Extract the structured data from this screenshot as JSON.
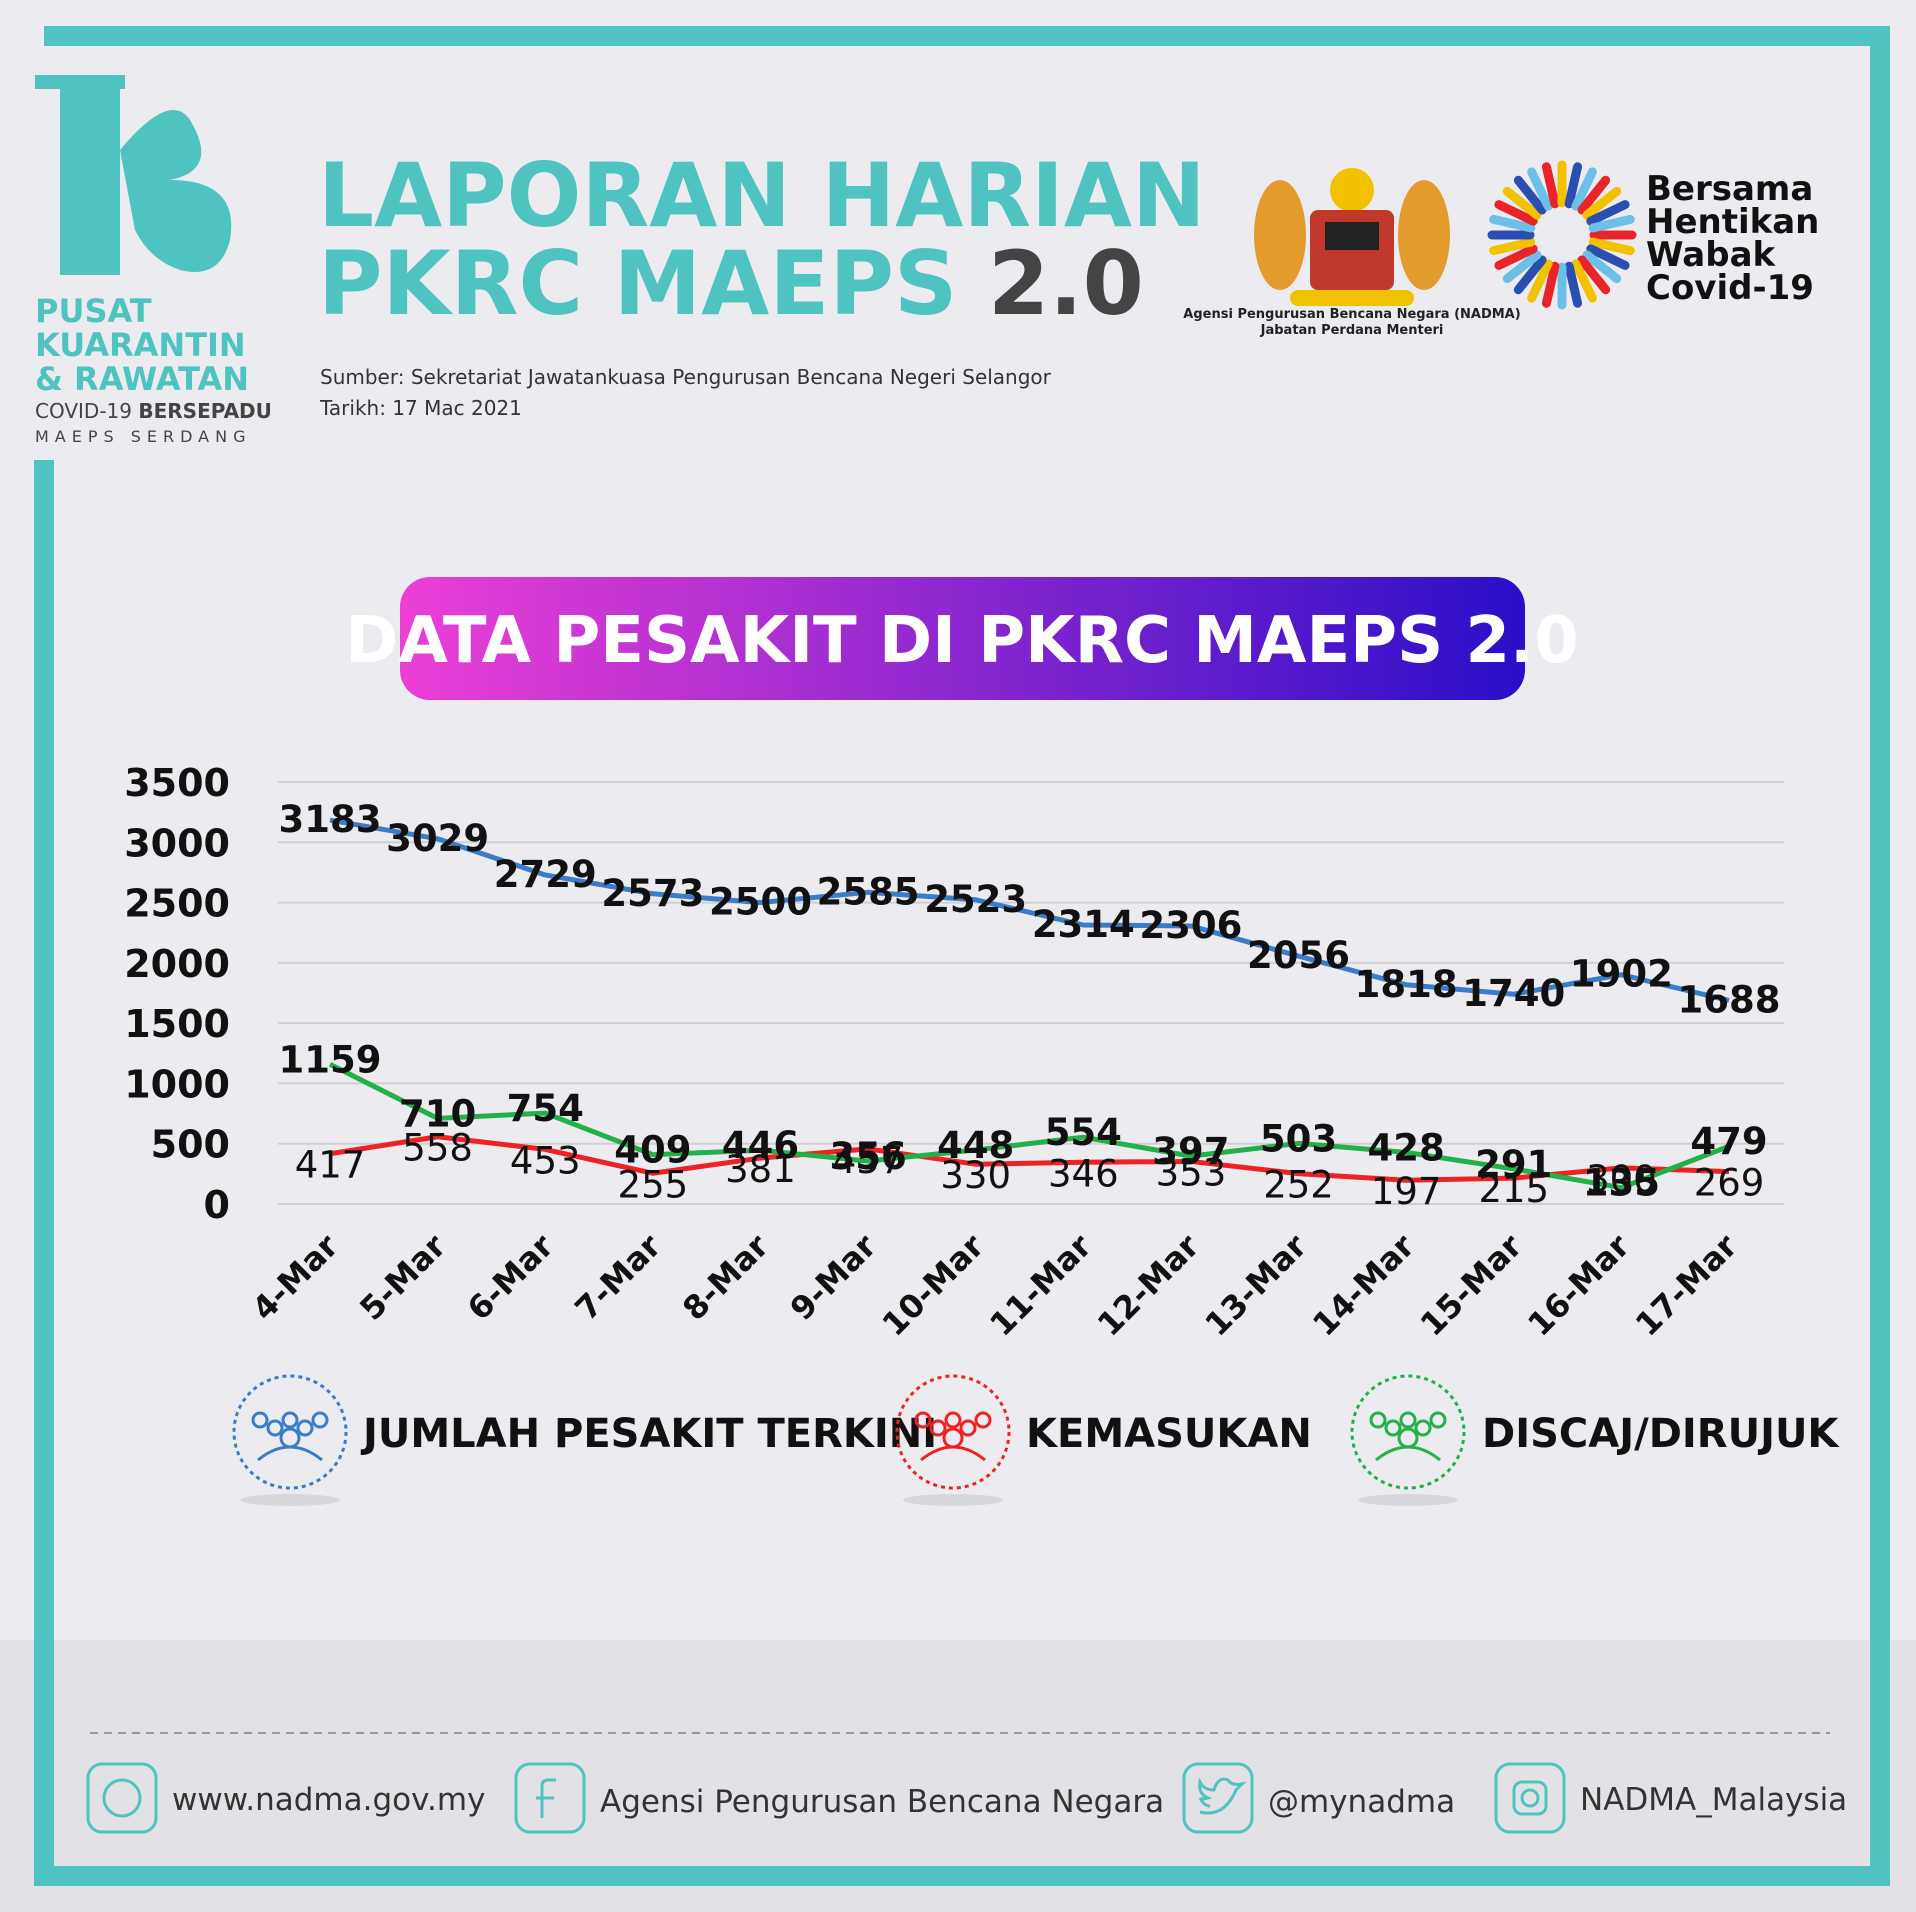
{
  "logo": {
    "line1": "PUSAT",
    "line2": "KUARANTIN",
    "line3": "& RAWATAN",
    "line4a": "COVID-19",
    "line4b": "BERSEPADU",
    "line5": "MAEPS SERDANG"
  },
  "header": {
    "title_line1": "LAPORAN HARIAN",
    "title_line2": "PKRC MAEPS",
    "title_version": "2.0",
    "source": "Sumber: Sekretariat Jawatankuasa Pengurusan Bencana Negeri Selangor",
    "date": "Tarikh: 17 Mac 2021",
    "agency": "Agensi Pengurusan Bencana Negara (NADMA)",
    "department": "Jabatan Perdana Menteri",
    "slogan": [
      "Bersama",
      "Hentikan",
      "Wabak",
      "Covid-19"
    ]
  },
  "chart_data": {
    "type": "line",
    "title": "DATA PESAKIT DI PKRC MAEPS 2.0",
    "categories": [
      "4-Mar",
      "5-Mar",
      "6-Mar",
      "7-Mar",
      "8-Mar",
      "9-Mar",
      "10-Mar",
      "11-Mar",
      "12-Mar",
      "13-Mar",
      "14-Mar",
      "15-Mar",
      "16-Mar",
      "17-Mar"
    ],
    "series": [
      {
        "name": "JUMLAH PESAKIT TERKINI",
        "color": "#3a7cc9",
        "values": [
          3183,
          3029,
          2729,
          2573,
          2500,
          2585,
          2523,
          2314,
          2306,
          2056,
          1818,
          1740,
          1902,
          1688
        ]
      },
      {
        "name": "KEMASUKAN",
        "color": "#ee2222",
        "values": [
          417,
          558,
          453,
          255,
          381,
          457,
          330,
          346,
          353,
          252,
          197,
          215,
          300,
          269
        ]
      },
      {
        "name": "DISCAJ/DIRUJUK",
        "color": "#22b04a",
        "values": [
          1159,
          710,
          754,
          409,
          446,
          356,
          448,
          554,
          397,
          503,
          428,
          291,
          135,
          479
        ]
      }
    ],
    "ylim": [
      0,
      3500
    ],
    "yticks": [
      0,
      500,
      1000,
      1500,
      2000,
      2500,
      3000,
      3500
    ],
    "grid": true
  },
  "footer": {
    "website": "www.nadma.gov.my",
    "facebook": "Agensi Pengurusan Bencana Negara",
    "twitter": "@mynadma",
    "instagram": "NADMA_Malaysia"
  }
}
